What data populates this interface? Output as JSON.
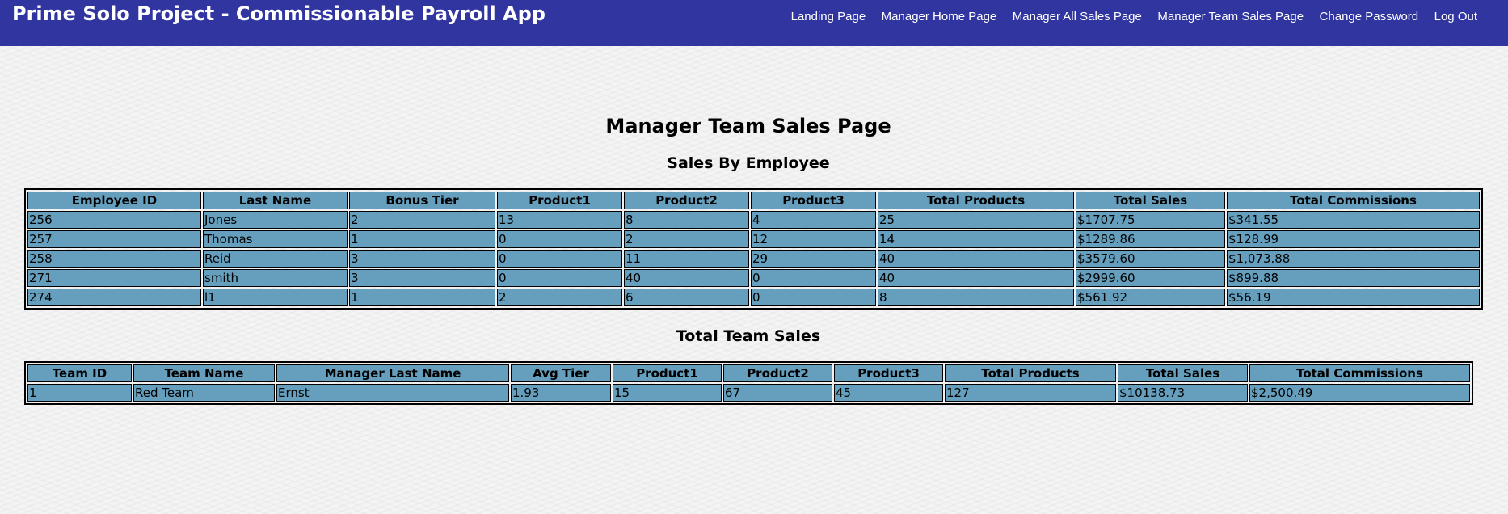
{
  "header": {
    "app_title": "Prime Solo Project - Commissionable Payroll App",
    "nav": [
      "Landing Page",
      "Manager Home Page",
      "Manager All Sales Page",
      "Manager Team Sales Page",
      "Change Password",
      "Log Out"
    ]
  },
  "main": {
    "page_title": "Manager Team Sales Page",
    "employee_section": {
      "title": "Sales By Employee",
      "headers": [
        "Employee ID",
        "Last Name",
        "Bonus Tier",
        "Product1",
        "Product2",
        "Product3",
        "Total Products",
        "Total Sales",
        "Total Commissions"
      ],
      "rows": [
        [
          "256",
          "Jones",
          "2",
          "13",
          "8",
          "4",
          "25",
          "$1707.75",
          "$341.55"
        ],
        [
          "257",
          "Thomas",
          "1",
          "0",
          "2",
          "12",
          "14",
          "$1289.86",
          "$128.99"
        ],
        [
          "258",
          "Reid",
          "3",
          "0",
          "11",
          "29",
          "40",
          "$3579.60",
          "$1,073.88"
        ],
        [
          "271",
          "smith",
          "3",
          "0",
          "40",
          "0",
          "40",
          "$2999.60",
          "$899.88"
        ],
        [
          "274",
          "l1",
          "1",
          "2",
          "6",
          "0",
          "8",
          "$561.92",
          "$56.19"
        ]
      ]
    },
    "team_section": {
      "title": "Total Team Sales",
      "headers": [
        "Team ID",
        "Team Name",
        "Manager Last Name",
        "Avg Tier",
        "Product1",
        "Product2",
        "Product3",
        "Total Products",
        "Total Sales",
        "Total Commissions"
      ],
      "rows": [
        [
          "1",
          "Red Team",
          "Ernst",
          "1.93",
          "15",
          "67",
          "45",
          "127",
          "$10138.73",
          "$2,500.49"
        ]
      ]
    }
  },
  "colors": {
    "nav_background": "#3035a0",
    "table_cell": "#659fbd",
    "page_background": "#f4f4f4"
  }
}
